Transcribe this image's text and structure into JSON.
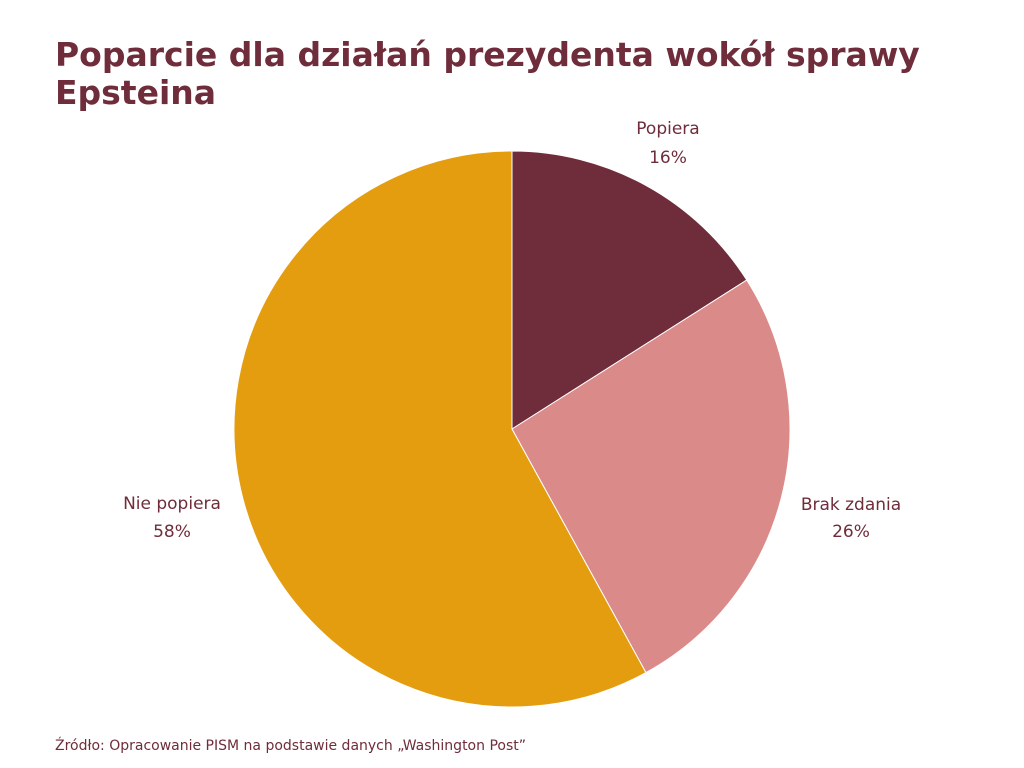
{
  "chart_data": {
    "type": "pie",
    "title": "Poparcie dla działań prezydenta wokół sprawy Epsteina",
    "slices": [
      {
        "label": "Popiera",
        "value": 16,
        "value_label": "16%",
        "color": "#6f2c3a"
      },
      {
        "label": "Brak zdania",
        "value": 26,
        "value_label": "26%",
        "color": "#db8a8a"
      },
      {
        "label": "Nie popiera",
        "value": 58,
        "value_label": "58%",
        "color": "#e59d10"
      }
    ],
    "start_angle": "12 o'clock",
    "direction": "clockwise",
    "legend": "none"
  },
  "source": "Źródło: Opracowanie PISM na podstawie danych „Washington Post”"
}
